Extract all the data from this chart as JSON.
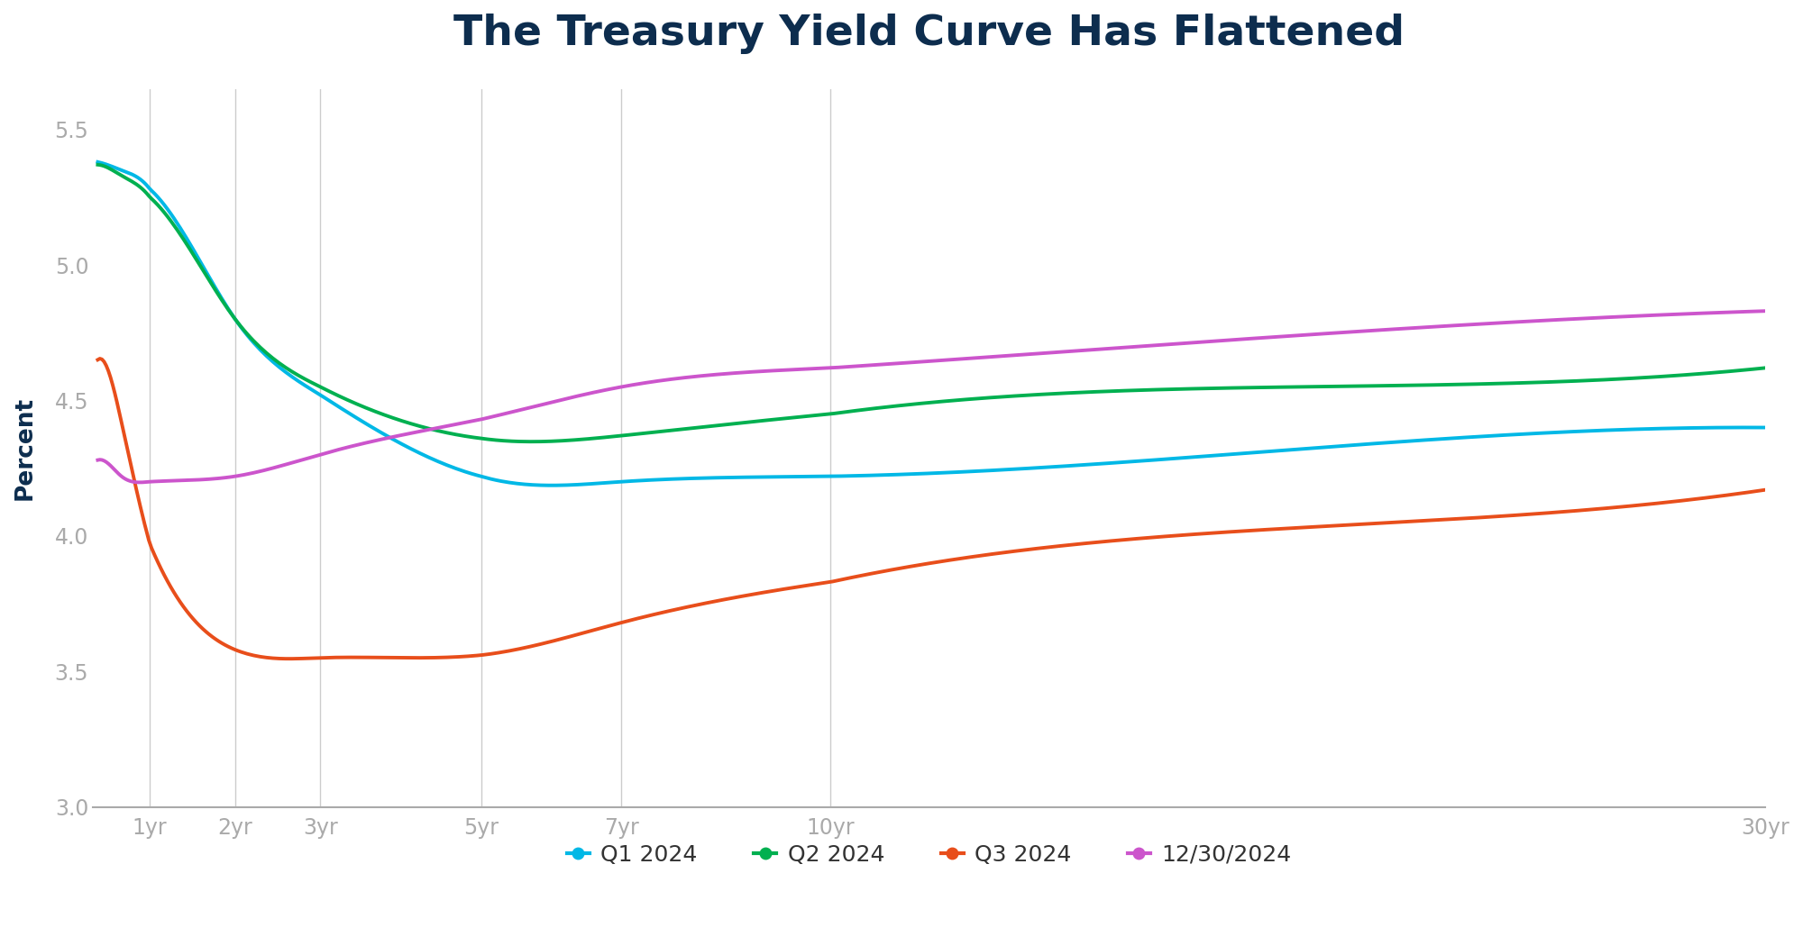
{
  "title": "The Treasury Yield Curve Has Flattened",
  "ylabel": "Percent",
  "background_color": "#ffffff",
  "title_color": "#0d2d4e",
  "ylabel_color": "#0d2d4e",
  "ylim": [
    3.0,
    5.65
  ],
  "yticks": [
    3.0,
    3.5,
    4.0,
    4.5,
    5.0,
    5.5
  ],
  "x_labels": [
    "1yr",
    "2yr",
    "3yr",
    "5yr",
    "7yr",
    "10yr",
    "30yr"
  ],
  "x_maturities": [
    1,
    2,
    3,
    5,
    7,
    10,
    30
  ],
  "x_display": [
    1,
    2,
    3,
    5,
    7,
    10,
    30
  ],
  "vline_maturities": [
    1,
    2,
    3,
    5,
    7,
    10
  ],
  "series": {
    "Q1 2024": {
      "color": "#00b8e6",
      "x": [
        0.083,
        0.25,
        0.5,
        1,
        2,
        3,
        5,
        7,
        10,
        20,
        30
      ],
      "y": [
        5.38,
        5.37,
        5.35,
        5.28,
        4.8,
        4.52,
        4.22,
        4.2,
        4.22,
        4.32,
        4.4
      ]
    },
    "Q2 2024": {
      "color": "#00b050",
      "x": [
        0.083,
        0.25,
        0.5,
        1,
        2,
        3,
        5,
        7,
        10,
        20,
        30
      ],
      "y": [
        5.37,
        5.36,
        5.33,
        5.25,
        4.8,
        4.55,
        4.36,
        4.37,
        4.45,
        4.55,
        4.62
      ]
    },
    "Q3 2024": {
      "color": "#e84e1b",
      "x": [
        0.083,
        0.25,
        0.5,
        1,
        2,
        3,
        5,
        7,
        10,
        20,
        30
      ],
      "y": [
        4.65,
        4.62,
        4.42,
        3.97,
        3.58,
        3.55,
        3.56,
        3.68,
        3.83,
        4.03,
        4.17
      ]
    },
    "12/30/2024": {
      "color": "#cc55cc",
      "x": [
        0.083,
        0.25,
        0.5,
        1,
        2,
        3,
        5,
        7,
        10,
        20,
        30
      ],
      "y": [
        4.28,
        4.27,
        4.22,
        4.2,
        4.22,
        4.3,
        4.43,
        4.55,
        4.62,
        4.74,
        4.83
      ]
    }
  },
  "legend_order": [
    "Q1 2024",
    "Q2 2024",
    "Q3 2024",
    "12/30/2024"
  ]
}
